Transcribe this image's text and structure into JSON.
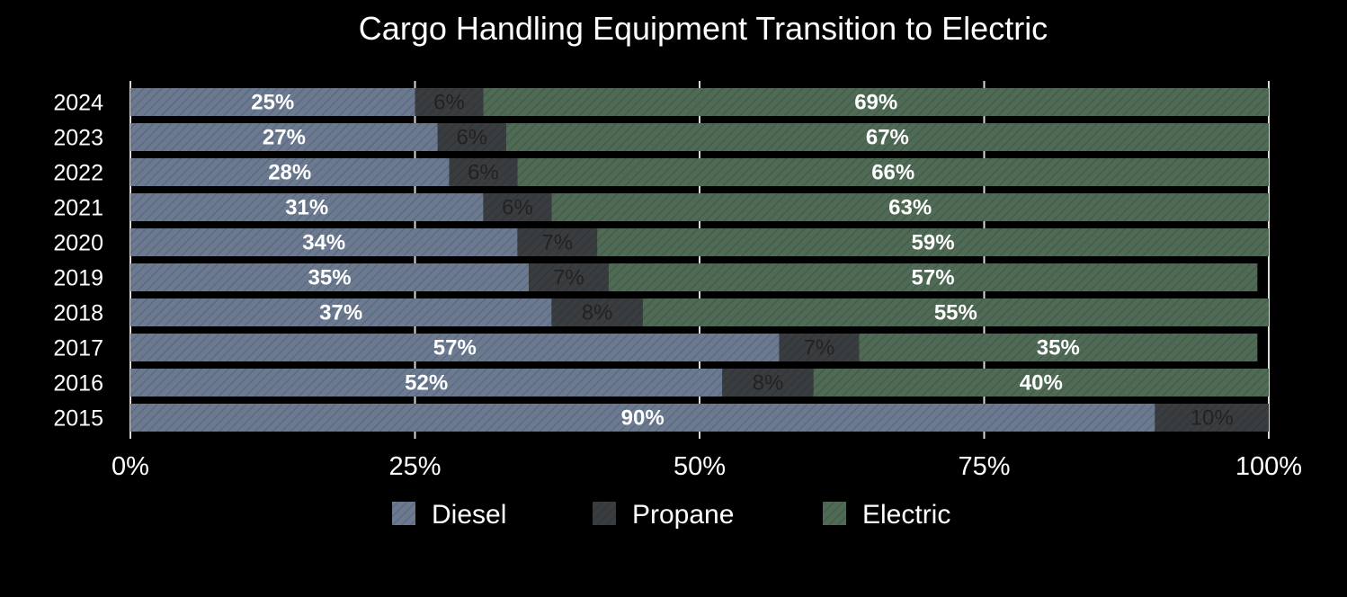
{
  "chart_data": {
    "type": "bar",
    "orientation": "horizontal",
    "stacked": true,
    "title": "Cargo Handling Equipment Transition to Electric",
    "categories": [
      "2024",
      "2023",
      "2022",
      "2021",
      "2020",
      "2019",
      "2018",
      "2017",
      "2016",
      "2015"
    ],
    "series": [
      {
        "name": "Diesel",
        "color": "#6b7a90",
        "values": [
          25,
          27,
          28,
          31,
          34,
          35,
          37,
          57,
          52,
          90
        ]
      },
      {
        "name": "Propane",
        "color": "#3a3d40",
        "values": [
          6,
          6,
          6,
          6,
          7,
          7,
          8,
          7,
          8,
          10
        ]
      },
      {
        "name": "Electric",
        "color": "#4f6a55",
        "values": [
          69,
          67,
          66,
          63,
          59,
          57,
          55,
          35,
          40,
          0
        ]
      }
    ],
    "data_labels": {
      "Diesel": [
        "25%",
        "27%",
        "28%",
        "31%",
        "34%",
        "35%",
        "37%",
        "57%",
        "52%",
        "90%"
      ],
      "Propane": [
        "6%",
        "6%",
        "6%",
        "6%",
        "7%",
        "7%",
        "8%",
        "7%",
        "8%",
        "10%"
      ],
      "Electric": [
        "69%",
        "67%",
        "66%",
        "63%",
        "59%",
        "57%",
        "55%",
        "35%",
        "40%",
        ""
      ]
    },
    "x_ticks": [
      "0%",
      "25%",
      "50%",
      "75%",
      "100%"
    ],
    "xlim": [
      0,
      100
    ],
    "grid": true,
    "legend_position": "bottom"
  }
}
